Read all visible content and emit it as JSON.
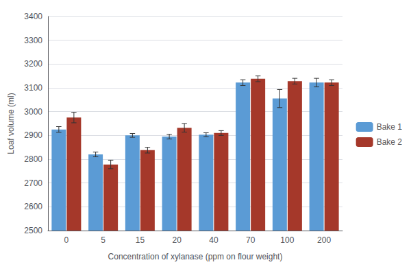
{
  "chart_data": {
    "type": "bar",
    "categories": [
      "0",
      "5",
      "15",
      "20",
      "40",
      "70",
      "100",
      "200"
    ],
    "series": [
      {
        "name": "Bake 1",
        "color": "#5B9BD5",
        "values": [
          2925,
          2820,
          2900,
          2895,
          2903,
          3122,
          3055,
          3122
        ],
        "errors": [
          12,
          10,
          8,
          10,
          8,
          12,
          38,
          18
        ]
      },
      {
        "name": "Bake 2",
        "color": "#A5382A",
        "values": [
          2975,
          2778,
          2838,
          2932,
          2910,
          3138,
          3128,
          3122
        ],
        "errors": [
          22,
          18,
          12,
          18,
          10,
          12,
          12,
          12
        ]
      }
    ],
    "xlabel": "Concentration of xylanase (ppm on flour weight)",
    "ylabel": "Loaf volume (ml)",
    "ylim": [
      2500,
      3400
    ],
    "yticks": [
      2500,
      2600,
      2700,
      2800,
      2900,
      3000,
      3100,
      3200,
      3300,
      3400
    ],
    "grid": true,
    "legend": "right"
  }
}
